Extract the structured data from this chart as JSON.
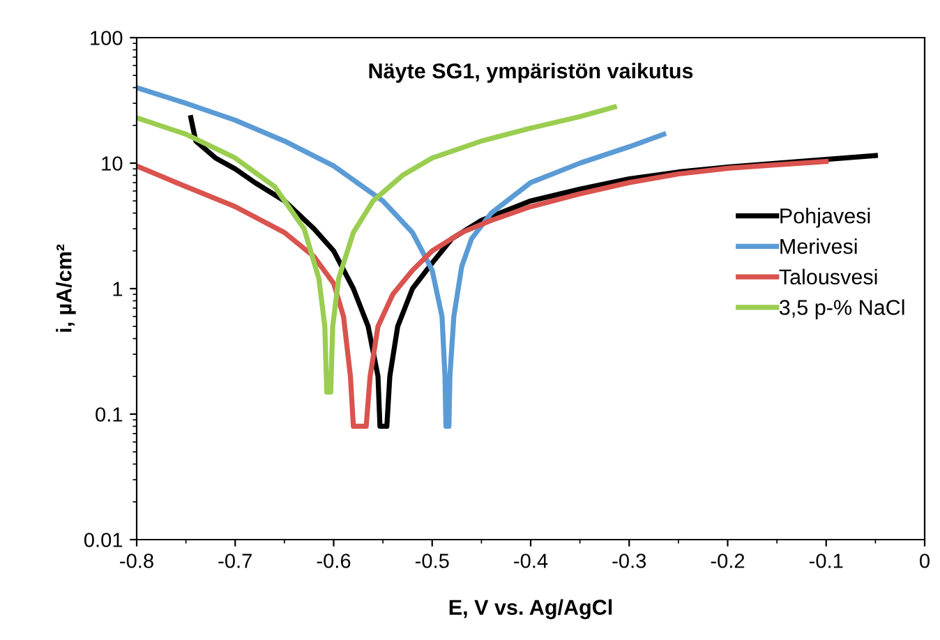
{
  "chart_data": {
    "type": "line",
    "title": "Näyte SG1, ympäristön vaikutus",
    "xlabel": "E, V vs. Ag/AgCl",
    "ylabel": "i, µA/cm²",
    "log": "y",
    "xlim": [
      -0.8,
      0
    ],
    "ylim": [
      0.01,
      100
    ],
    "xticks": [
      -0.8,
      -0.7,
      -0.6,
      -0.5,
      -0.4,
      -0.3,
      -0.2,
      -0.1,
      0
    ],
    "yticks": [
      0.01,
      0.1,
      1,
      10,
      100
    ],
    "grid": false,
    "legend": "right",
    "marker": "none",
    "line_style": "solid",
    "series": [
      {
        "name": "Pohjavesi",
        "color": "#000000",
        "x": [
          -0.745,
          -0.74,
          -0.72,
          -0.7,
          -0.68,
          -0.65,
          -0.62,
          -0.6,
          -0.58,
          -0.565,
          -0.555,
          -0.553,
          -0.546,
          -0.543,
          -0.535,
          -0.52,
          -0.5,
          -0.48,
          -0.45,
          -0.4,
          -0.35,
          -0.3,
          -0.25,
          -0.2,
          -0.15,
          -0.1,
          -0.05
        ],
        "values": [
          23,
          15,
          11,
          9,
          7,
          5,
          3,
          2,
          1,
          0.5,
          0.2,
          0.08,
          0.08,
          0.2,
          0.5,
          1,
          1.6,
          2.5,
          3.5,
          5,
          6.2,
          7.5,
          8.5,
          9.3,
          10,
          10.7,
          11.5
        ]
      },
      {
        "name": "Merivesi",
        "color": "#5b9bd5",
        "x": [
          -0.8,
          -0.75,
          -0.7,
          -0.65,
          -0.6,
          -0.55,
          -0.52,
          -0.5,
          -0.49,
          -0.487,
          -0.486,
          -0.483,
          -0.482,
          -0.478,
          -0.47,
          -0.46,
          -0.44,
          -0.4,
          -0.35,
          -0.3,
          -0.265
        ],
        "values": [
          40,
          30,
          22,
          15,
          9.5,
          5,
          2.8,
          1.4,
          0.6,
          0.2,
          0.08,
          0.08,
          0.2,
          0.6,
          1.5,
          2.5,
          4,
          7,
          10,
          13.5,
          17
        ]
      },
      {
        "name": "Talousvesi",
        "color": "#d9534f",
        "x": [
          -0.8,
          -0.75,
          -0.7,
          -0.65,
          -0.62,
          -0.6,
          -0.59,
          -0.583,
          -0.58,
          -0.567,
          -0.563,
          -0.555,
          -0.54,
          -0.52,
          -0.5,
          -0.47,
          -0.44,
          -0.4,
          -0.35,
          -0.3,
          -0.25,
          -0.2,
          -0.15,
          -0.1
        ],
        "values": [
          9.5,
          6.5,
          4.5,
          2.8,
          1.8,
          1.1,
          0.6,
          0.2,
          0.08,
          0.08,
          0.2,
          0.5,
          0.9,
          1.4,
          2,
          2.8,
          3.5,
          4.5,
          5.7,
          7,
          8.2,
          9.1,
          9.7,
          10.3
        ]
      },
      {
        "name": "3,5 p-% NaCl",
        "color": "#9acd50",
        "x": [
          -0.8,
          -0.75,
          -0.7,
          -0.66,
          -0.63,
          -0.615,
          -0.609,
          -0.607,
          -0.603,
          -0.601,
          -0.595,
          -0.58,
          -0.56,
          -0.53,
          -0.5,
          -0.45,
          -0.4,
          -0.35,
          -0.315
        ],
        "values": [
          23,
          17,
          11,
          6.5,
          3,
          1.2,
          0.5,
          0.15,
          0.15,
          0.5,
          1.2,
          2.8,
          5,
          8,
          11,
          15,
          19,
          23.5,
          28
        ]
      }
    ]
  }
}
